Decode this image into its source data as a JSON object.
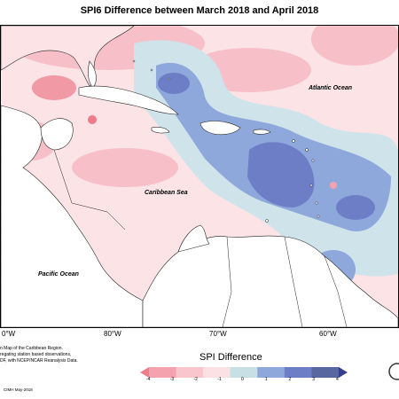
{
  "title": "SPI6 Difference between March 2018 and April 2018",
  "map": {
    "labels": {
      "atlantic": "Atlantic Ocean",
      "caribbean": "Caribbean Sea",
      "pacific": "Pacific Ocean"
    },
    "longitudes": [
      "0°W",
      "80°W",
      "70°W",
      "60°W"
    ]
  },
  "legend": {
    "title": "SPI Difference",
    "ticks": [
      "-4",
      "-3",
      "-2",
      "-1",
      "0",
      "1",
      "2",
      "3",
      "4"
    ],
    "colors": [
      "#ee7c8a",
      "#f4a3ae",
      "#f8c6cc",
      "#fbe1e4",
      "#c9dfe6",
      "#8fa8dc",
      "#6d7ec7",
      "#58679f",
      "#343f8c"
    ]
  },
  "notes": {
    "line1": "n Map of the Caribbean Region.",
    "line2": "regating station based observations,",
    "line3": "DF, with NCEP/NCAR Reanalysis Data."
  },
  "credit": "CIMH May-2018"
}
